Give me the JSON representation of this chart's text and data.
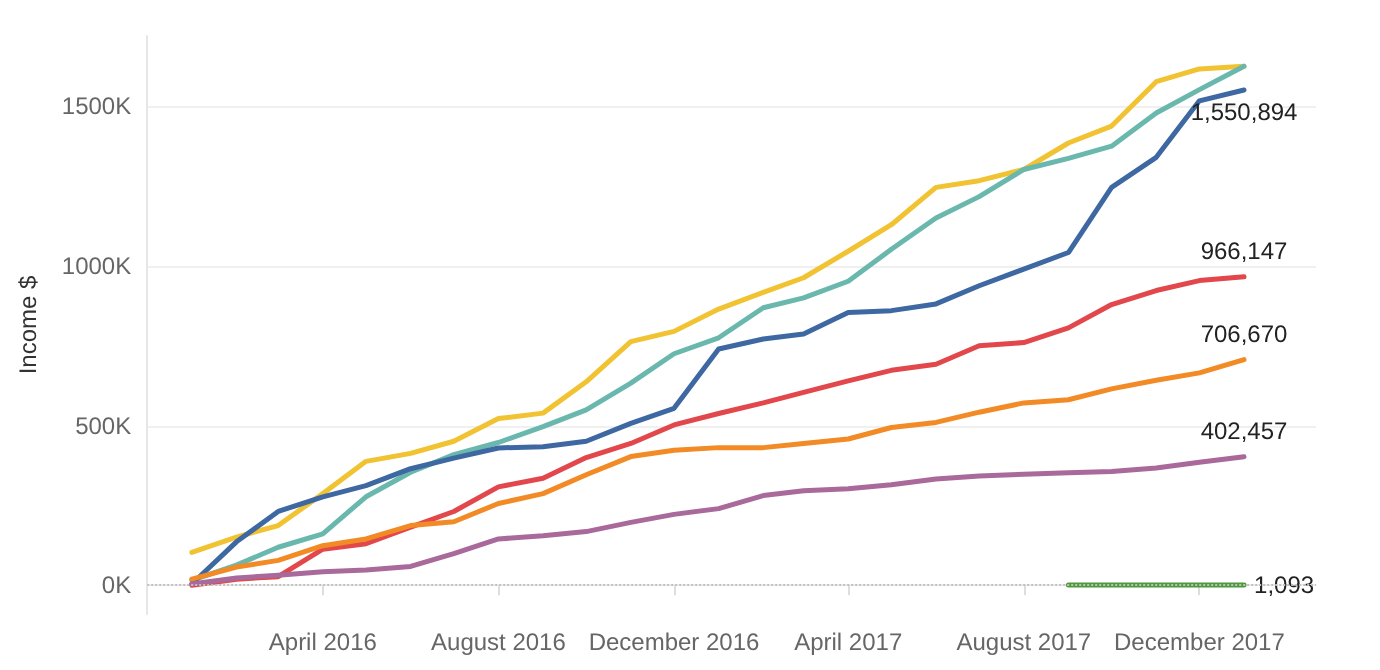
{
  "chart_data": {
    "type": "line",
    "ylabel": "Income $",
    "x": [
      "2016-01",
      "2016-02",
      "2016-03",
      "2016-04",
      "2016-05",
      "2016-06",
      "2016-07",
      "2016-08",
      "2016-09",
      "2016-10",
      "2016-11",
      "2016-12",
      "2017-01",
      "2017-02",
      "2017-03",
      "2017-04",
      "2017-05",
      "2017-06",
      "2017-07",
      "2017-08",
      "2017-09",
      "2017-10",
      "2017-11",
      "2017-12",
      "2018-01"
    ],
    "xlim": [
      "2015-12-01",
      "2018-02-20"
    ],
    "xticks": [
      {
        "value": "2016-04",
        "label": "April 2016"
      },
      {
        "value": "2016-08",
        "label": "August 2016"
      },
      {
        "value": "2016-12",
        "label": "December 2016"
      },
      {
        "value": "2017-04",
        "label": "April 2017"
      },
      {
        "value": "2017-08",
        "label": "August 2017"
      },
      {
        "value": "2017-12",
        "label": "December 2017"
      }
    ],
    "ylim": [
      -90000,
      1720000
    ],
    "yticks": [
      {
        "value": 0,
        "label": "0K"
      },
      {
        "value": 500000,
        "label": "500K"
      },
      {
        "value": 1000000,
        "label": "1000K"
      },
      {
        "value": 1500000,
        "label": "1500K"
      }
    ],
    "grid": "y",
    "marker": "none",
    "line_style": "solid",
    "ref_lines": [
      {
        "axis": "y",
        "value": 0,
        "color": "#c0c0c0",
        "line_style": "dotted"
      }
    ],
    "series": [
      {
        "color": "#f1c232",
        "values": [
          103000,
          151000,
          187000,
          287000,
          388000,
          413000,
          451000,
          522000,
          539000,
          637000,
          763000,
          795000,
          865000,
          917000,
          963000,
          1046000,
          1129000,
          1246000,
          1267000,
          1302000,
          1385000,
          1438000,
          1577000,
          1617000,
          1625000
        ]
      },
      {
        "color": "#6ab8ad",
        "values": [
          15000,
          63000,
          119000,
          161000,
          277000,
          354000,
          409000,
          447000,
          497000,
          549000,
          633000,
          725000,
          775000,
          869000,
          900000,
          952000,
          1052000,
          1150000,
          1217000,
          1302000,
          1337000,
          1375000,
          1479000,
          1552000,
          1625000
        ]
      },
      {
        "color": "#3d68a2",
        "values": [
          4000,
          136000,
          231000,
          277000,
          312000,
          365000,
          398000,
          430000,
          434000,
          451000,
          507000,
          554000,
          740000,
          771000,
          787000,
          854000,
          860000,
          881000,
          938000,
          990000,
          1042000,
          1246000,
          1340000,
          1517000,
          1550894
        ],
        "value_labels": [
          null,
          null,
          null,
          null,
          null,
          null,
          null,
          null,
          null,
          null,
          null,
          null,
          null,
          null,
          null,
          null,
          null,
          null,
          null,
          null,
          null,
          null,
          null,
          null,
          "1,550,894"
        ]
      },
      {
        "color": "#e2474b",
        "values": [
          0,
          19000,
          27000,
          113000,
          130000,
          182000,
          231000,
          308000,
          335000,
          400000,
          444000,
          502000,
          538000,
          571000,
          604000,
          640000,
          673000,
          692000,
          750000,
          760000,
          806000,
          879000,
          923000,
          954000,
          966147
        ],
        "value_labels": [
          null,
          null,
          null,
          null,
          null,
          null,
          null,
          null,
          null,
          null,
          null,
          null,
          null,
          null,
          null,
          null,
          null,
          null,
          null,
          null,
          null,
          null,
          null,
          null,
          "966,147"
        ]
      },
      {
        "color": "#f28a25",
        "values": [
          19000,
          57000,
          78000,
          124000,
          145000,
          187000,
          199000,
          256000,
          287000,
          346000,
          403000,
          423000,
          431000,
          431000,
          444000,
          458000,
          494000,
          510000,
          542000,
          571000,
          581000,
          615000,
          642000,
          665000,
          706670
        ],
        "value_labels": [
          null,
          null,
          null,
          null,
          null,
          null,
          null,
          null,
          null,
          null,
          null,
          null,
          null,
          null,
          null,
          null,
          null,
          null,
          null,
          null,
          null,
          null,
          null,
          null,
          "706,670"
        ]
      },
      {
        "color": "#a9699b",
        "values": [
          4000,
          23000,
          31000,
          42000,
          48000,
          59000,
          99000,
          145000,
          155000,
          168000,
          197000,
          222000,
          240000,
          281000,
          296000,
          302000,
          315000,
          333000,
          342000,
          348000,
          352000,
          356000,
          367000,
          385000,
          402457
        ],
        "value_labels": [
          null,
          null,
          null,
          null,
          null,
          null,
          null,
          null,
          null,
          null,
          null,
          null,
          null,
          null,
          null,
          null,
          null,
          null,
          null,
          null,
          null,
          null,
          null,
          null,
          "402,457"
        ]
      },
      {
        "color": "#4c9a3a",
        "values": [
          null,
          null,
          null,
          null,
          null,
          null,
          null,
          null,
          null,
          null,
          null,
          null,
          null,
          null,
          null,
          null,
          null,
          null,
          null,
          null,
          1000,
          1000,
          1000,
          1000,
          1093
        ],
        "value_labels": [
          null,
          null,
          null,
          null,
          null,
          null,
          null,
          null,
          null,
          null,
          null,
          null,
          null,
          null,
          null,
          null,
          null,
          null,
          null,
          null,
          null,
          null,
          null,
          null,
          "1,093"
        ]
      }
    ]
  }
}
